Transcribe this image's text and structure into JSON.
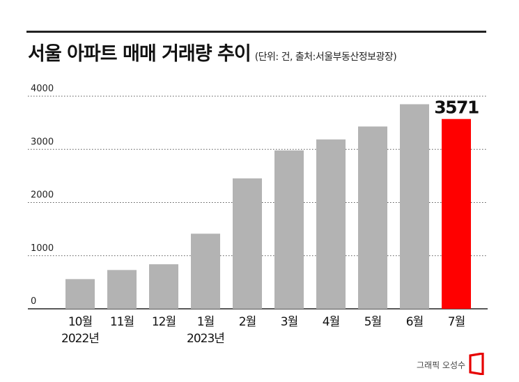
{
  "title": "서울 아파트 매매 거래량 추이",
  "subtitle": "(단위: 건, 출처:서울부동산정보광장)",
  "credit": "그래픽 오성수",
  "colors": {
    "bar": "#b3b3b3",
    "highlight": "#ff0000",
    "grid": "#555555",
    "axis": "#222222",
    "text": "#111111"
  },
  "chart_data": {
    "type": "bar",
    "categories": [
      "10월",
      "11월",
      "12월",
      "1월",
      "2월",
      "3월",
      "4월",
      "5월",
      "6월",
      "7월"
    ],
    "year_labels": [
      "2022년",
      "",
      "",
      "2023년",
      "",
      "",
      "",
      "",
      "",
      ""
    ],
    "values": [
      559,
      730,
      838,
      1413,
      2454,
      2980,
      3186,
      3430,
      3849,
      3571
    ],
    "highlight_index": 9,
    "highlight_label": "3571",
    "y_ticks": [
      0,
      1000,
      2000,
      3000,
      4000
    ],
    "ylim": [
      0,
      4000
    ],
    "grid": true,
    "xlabel": "",
    "ylabel": ""
  }
}
